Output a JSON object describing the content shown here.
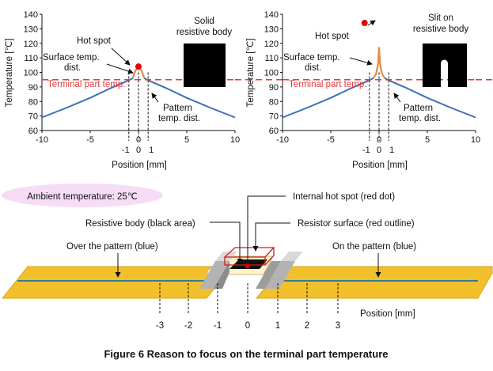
{
  "colors": {
    "curve": "#3f6fb5",
    "peak": "#e58a3a",
    "terminal_line": "#e23b3b",
    "hot_dot": "#e00000",
    "pattern": "#f2c02a",
    "pattern_edge": "#d9a41a",
    "pattern_line": "#2f7e9a",
    "ambient_fill": "#f6dcf5"
  },
  "chart_data": [
    {
      "type": "line",
      "xlabel": "Position [mm]",
      "ylabel": "Temperature [℃]",
      "xlim": [
        -10,
        10
      ],
      "ylim": [
        60,
        140
      ],
      "x_ticks": [
        "-10",
        "-5",
        "0",
        "5",
        "10"
      ],
      "y_ticks": [
        "60",
        "70",
        "80",
        "90",
        "100",
        "110",
        "120",
        "130",
        "140"
      ],
      "extra_x_ticks": [
        "-1",
        "0",
        "1"
      ],
      "terminal_temp": 95,
      "series": [
        {
          "x": [
            -10,
            -7.5,
            -5,
            -3,
            -1,
            -0.6
          ],
          "y": [
            69,
            75.5,
            82.5,
            88.8,
            94.5,
            96
          ]
        },
        {
          "x": [
            -0.6,
            -0.3,
            0,
            0.3,
            0.6
          ],
          "y": [
            96,
            101.5,
            103.5,
            101.5,
            96
          ]
        },
        {
          "x": [
            0.6,
            1,
            3,
            5,
            7.5,
            10
          ],
          "y": [
            96,
            94.5,
            88.8,
            82.5,
            75.5,
            69
          ]
        }
      ],
      "hot_spot": {
        "x": 0,
        "y": 104
      },
      "labels": {
        "hot_spot": "Hot spot",
        "surface": [
          "Surface temp.",
          "dist."
        ],
        "terminal": "Terminal part temp.",
        "pattern": [
          "Pattern",
          "temp. dist."
        ],
        "resistor": [
          "Solid",
          "resistive body"
        ]
      }
    },
    {
      "type": "line",
      "xlabel": "Position [mm]",
      "ylabel": "Temperature [℃]",
      "xlim": [
        -10,
        10
      ],
      "ylim": [
        60,
        140
      ],
      "x_ticks": [
        "-10",
        "-5",
        "0",
        "5",
        "10"
      ],
      "y_ticks": [
        "60",
        "70",
        "80",
        "90",
        "100",
        "110",
        "120",
        "130",
        "140"
      ],
      "extra_x_ticks": [
        "-1",
        "0",
        "1"
      ],
      "terminal_temp": 95,
      "series": [
        {
          "x": [
            -10,
            -7.5,
            -5,
            -3,
            -1,
            -0.6
          ],
          "y": [
            69,
            75.5,
            82.5,
            88.8,
            94.5,
            96
          ]
        },
        {
          "x": [
            -0.6,
            -0.3,
            -0.1,
            0,
            0.1,
            0.3,
            0.6
          ],
          "y": [
            96,
            99,
            106,
            117,
            106,
            99,
            96
          ]
        },
        {
          "x": [
            0.6,
            1,
            3,
            5,
            7.5,
            10
          ],
          "y": [
            96,
            94.5,
            88.8,
            82.5,
            75.5,
            69
          ]
        }
      ],
      "hot_spot": {
        "x": -1.5,
        "y": 134
      },
      "labels": {
        "hot_spot": "Hot spot",
        "surface": [
          "Surface temp.",
          "dist."
        ],
        "terminal": "Terminal part temp.",
        "pattern": [
          "Pattern",
          "temp. dist."
        ],
        "resistor": [
          "Slit on",
          "resistive body"
        ]
      }
    }
  ],
  "diagram": {
    "ambient": "Ambient temperature: 25℃",
    "internal_hot_spot": "Internal hot spot (red dot)",
    "resistive_body": "Resistive body (black area)",
    "resistor_surface": "Resistor surface (red outline)",
    "over_pattern": "Over the pattern (blue)",
    "on_pattern": "On the pattern (blue)",
    "position_label": "Position [mm]",
    "position_ticks": [
      "-3",
      "-2",
      "-1",
      "0",
      "1",
      "2",
      "3"
    ]
  },
  "caption": "Figure 6  Reason to focus on the terminal part temperature"
}
